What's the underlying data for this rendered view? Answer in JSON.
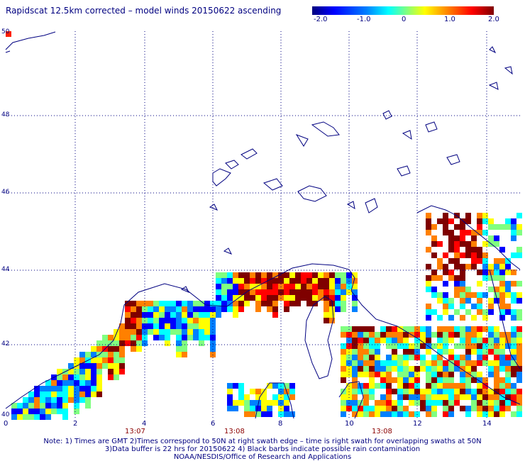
{
  "title": "Rapidscat 12.5km corrected – model winds 20150622 ascending",
  "colorbar": {
    "ticks": [
      "-2.0",
      "-1.0",
      "0",
      "1.0",
      "2.0"
    ],
    "min": -2.0,
    "max": 2.0,
    "colors": [
      "#00007f",
      "#0000ff",
      "#0080ff",
      "#00ffff",
      "#80ff80",
      "#ffff00",
      "#ff8000",
      "#ff0000",
      "#7f0000"
    ]
  },
  "lat_labels": [
    "50",
    "48",
    "46",
    "44",
    "42",
    "40"
  ],
  "lon_labels": [
    "0",
    "2",
    "4",
    "6",
    "8",
    "10",
    "12",
    "14"
  ],
  "time_labels": [
    "13:07",
    "13:08",
    "13:08"
  ],
  "notes": [
    "Note: 1) Times are GMT 2)Times correspond to 50N at right swath edge – time is right swath for overlapping swaths at 50N",
    "3)Data buffer is 22 hrs for 20150622 4) Black barbs indicate possible rain contamination",
    "NOAA/NESDIS/Office of Research and Applications"
  ],
  "colors": {
    "coast": "#000080",
    "grid": "#000080",
    "time": "#8b0000"
  }
}
